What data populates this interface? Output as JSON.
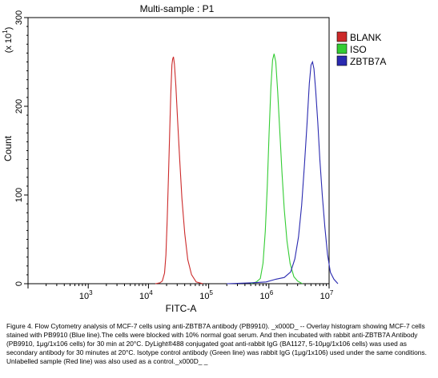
{
  "chart_data": {
    "type": "line",
    "title": "Multi-sample : P1",
    "xlabel": "FITC-A",
    "ylabel": "Count",
    "y_multiplier_label": "(x 10",
    "y_multiplier_exp": "1",
    "x_scale": "log",
    "x_range": [
      100,
      10000000
    ],
    "x_ticks": [
      {
        "base": "10",
        "exp": "3"
      },
      {
        "base": "10",
        "exp": "4"
      },
      {
        "base": "10",
        "exp": "5"
      },
      {
        "base": "10",
        "exp": "6"
      },
      {
        "base": "10",
        "exp": "7"
      }
    ],
    "ylim": [
      0,
      300
    ],
    "y_ticks": [
      "0",
      "100",
      "200",
      "300"
    ],
    "grid": false,
    "legend_position": "top-right",
    "series": [
      {
        "name": "BLANK",
        "color": "#cc2a2a",
        "points": [
          [
            13000,
            0
          ],
          [
            15500,
            1
          ],
          [
            17000,
            3
          ],
          [
            18500,
            10
          ],
          [
            19500,
            30
          ],
          [
            20500,
            70
          ],
          [
            21500,
            120
          ],
          [
            22500,
            170
          ],
          [
            23500,
            215
          ],
          [
            24500,
            248
          ],
          [
            25200,
            255
          ],
          [
            26000,
            258
          ],
          [
            27000,
            250
          ],
          [
            28500,
            225
          ],
          [
            30500,
            185
          ],
          [
            33000,
            140
          ],
          [
            36000,
            95
          ],
          [
            40000,
            55
          ],
          [
            45000,
            25
          ],
          [
            52000,
            8
          ],
          [
            62000,
            2
          ],
          [
            80000,
            0
          ]
        ]
      },
      {
        "name": "ISO",
        "color": "#33cc33",
        "points": [
          [
            500000,
            0
          ],
          [
            620000,
            2
          ],
          [
            720000,
            8
          ],
          [
            800000,
            25
          ],
          [
            870000,
            60
          ],
          [
            940000,
            110
          ],
          [
            1010000,
            170
          ],
          [
            1080000,
            220
          ],
          [
            1150000,
            250
          ],
          [
            1220000,
            257
          ],
          [
            1300000,
            248
          ],
          [
            1400000,
            215
          ],
          [
            1520000,
            170
          ],
          [
            1650000,
            125
          ],
          [
            1800000,
            85
          ],
          [
            2000000,
            50
          ],
          [
            2250000,
            25
          ],
          [
            2600000,
            10
          ],
          [
            3000000,
            3
          ],
          [
            3600000,
            0
          ]
        ]
      },
      {
        "name": "ZBTB7A",
        "color": "#2a2ab0",
        "points": [
          [
            200000,
            0
          ],
          [
            500000,
            1
          ],
          [
            900000,
            2
          ],
          [
            1300000,
            5
          ],
          [
            1800000,
            8
          ],
          [
            2300000,
            15
          ],
          [
            2700000,
            30
          ],
          [
            3100000,
            55
          ],
          [
            3500000,
            90
          ],
          [
            3900000,
            135
          ],
          [
            4300000,
            180
          ],
          [
            4700000,
            225
          ],
          [
            5000000,
            245
          ],
          [
            5300000,
            248
          ],
          [
            5600000,
            240
          ],
          [
            6000000,
            215
          ],
          [
            6500000,
            180
          ],
          [
            7000000,
            140
          ],
          [
            7700000,
            100
          ],
          [
            8500000,
            65
          ],
          [
            9400000,
            35
          ],
          [
            10500000,
            15
          ],
          [
            12000000,
            5
          ],
          [
            14000000,
            0
          ]
        ]
      }
    ]
  },
  "caption": "Figure 4. Flow Cytometry analysis of MCF-7 cells using anti-ZBTB7A antibody (PB9910). _x000D_ -- Overlay histogram showing MCF-7 cells stained with PB9910 (Blue line).The cells were blocked with 10% normal goat serum. And then incubated with rabbit anti-ZBTB7A Antibody (PB9910, 1μg/1x106 cells) for 30 min at 20°C. DyLight®488 conjugated goat anti-rabbit IgG (BA1127, 5-10μg/1x106 cells) was used as secondary antibody for 30 minutes at 20°C. Isotype control antibody (Green line) was rabbit IgG (1μg/1x106) used under the same conditions. Unlabelled sample (Red line) was also used as a control._x000D_ _"
}
